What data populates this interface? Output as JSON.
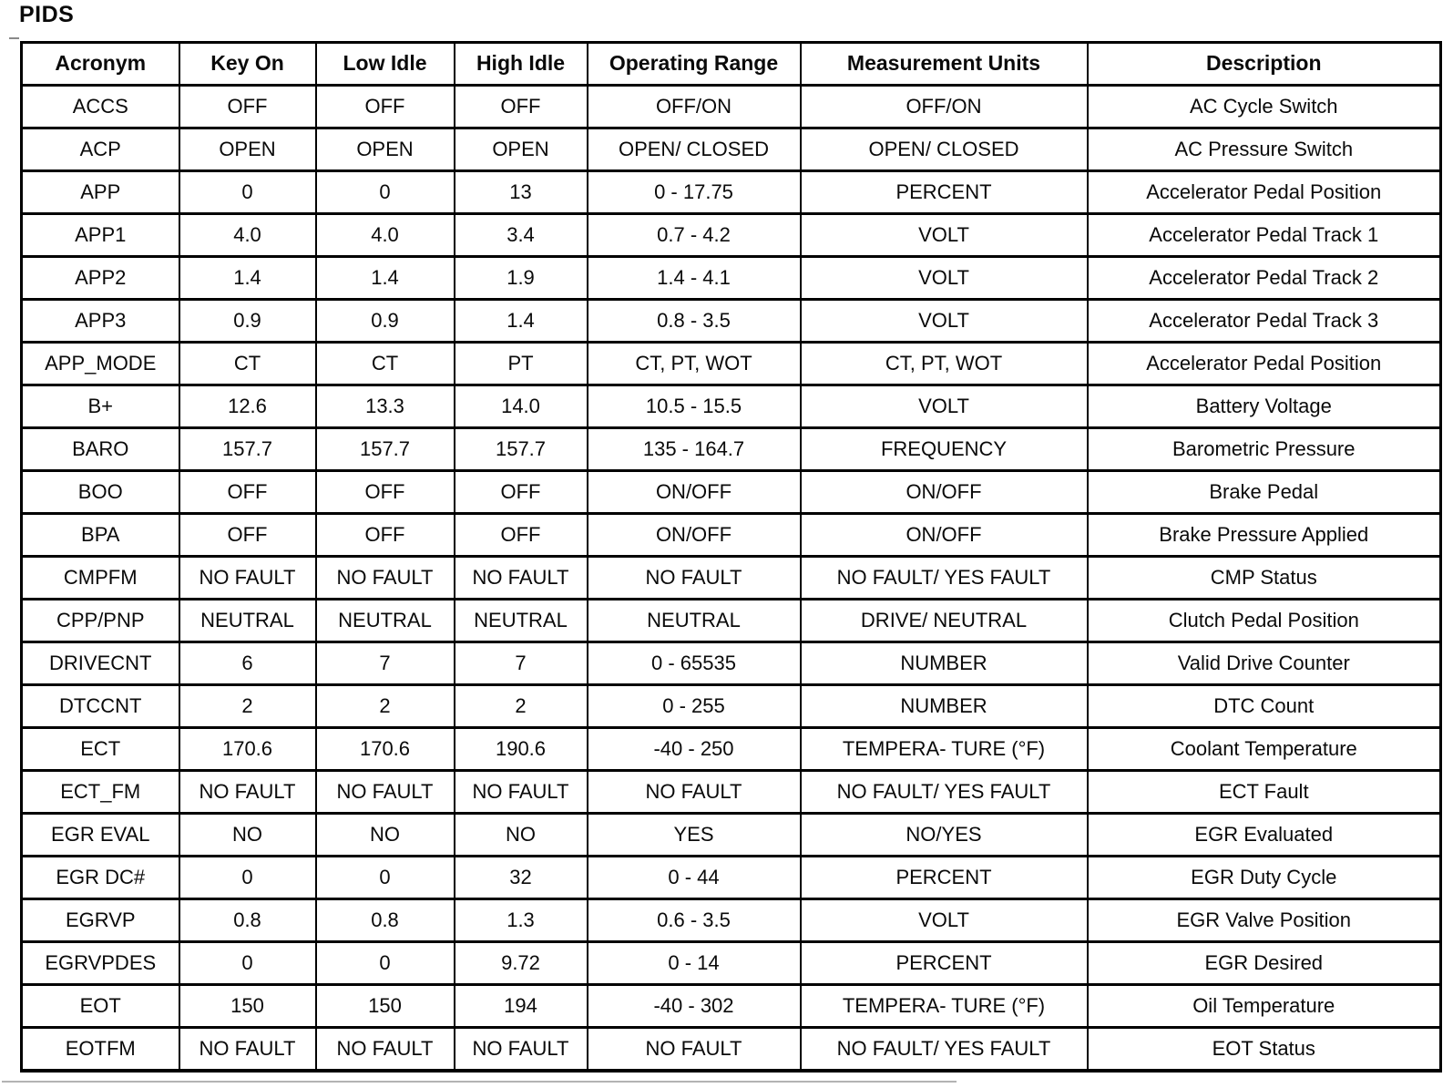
{
  "page": {
    "title": "PIDS"
  },
  "table": {
    "columns": [
      "Acronym",
      "Key On",
      "Low Idle",
      "High Idle",
      "Operating Range",
      "Measurement Units",
      "Description"
    ],
    "rows": [
      [
        "ACCS",
        "OFF",
        "OFF",
        "OFF",
        "OFF/ON",
        "OFF/ON",
        "AC Cycle Switch"
      ],
      [
        "ACP",
        "OPEN",
        "OPEN",
        "OPEN",
        "OPEN/ CLOSED",
        "OPEN/ CLOSED",
        "AC Pressure Switch"
      ],
      [
        "APP",
        "0",
        "0",
        "13",
        "0 - 17.75",
        "PERCENT",
        "Accelerator Pedal Position"
      ],
      [
        "APP1",
        "4.0",
        "4.0",
        "3.4",
        "0.7 - 4.2",
        "VOLT",
        "Accelerator Pedal Track 1"
      ],
      [
        "APP2",
        "1.4",
        "1.4",
        "1.9",
        "1.4 - 4.1",
        "VOLT",
        "Accelerator Pedal Track 2"
      ],
      [
        "APP3",
        "0.9",
        "0.9",
        "1.4",
        "0.8 - 3.5",
        "VOLT",
        "Accelerator Pedal Track 3"
      ],
      [
        "APP_MODE",
        "CT",
        "CT",
        "PT",
        "CT, PT, WOT",
        "CT, PT, WOT",
        "Accelerator Pedal Position"
      ],
      [
        "B+",
        "12.6",
        "13.3",
        "14.0",
        "10.5 - 15.5",
        "VOLT",
        "Battery Voltage"
      ],
      [
        "BARO",
        "157.7",
        "157.7",
        "157.7",
        "135 - 164.7",
        "FREQUENCY",
        "Barometric Pressure"
      ],
      [
        "BOO",
        "OFF",
        "OFF",
        "OFF",
        "ON/OFF",
        "ON/OFF",
        "Brake Pedal"
      ],
      [
        "BPA",
        "OFF",
        "OFF",
        "OFF",
        "ON/OFF",
        "ON/OFF",
        "Brake Pressure Applied"
      ],
      [
        "CMPFM",
        "NO FAULT",
        "NO FAULT",
        "NO FAULT",
        "NO FAULT",
        "NO FAULT/ YES FAULT",
        "CMP Status"
      ],
      [
        "CPP/PNP",
        "NEUTRAL",
        "NEUTRAL",
        "NEUTRAL",
        "NEUTRAL",
        "DRIVE/ NEUTRAL",
        "Clutch Pedal Position"
      ],
      [
        "DRIVECNT",
        "6",
        "7",
        "7",
        "0 - 65535",
        "NUMBER",
        "Valid Drive Counter"
      ],
      [
        "DTCCNT",
        "2",
        "2",
        "2",
        "0 - 255",
        "NUMBER",
        "DTC Count"
      ],
      [
        "ECT",
        "170.6",
        "170.6",
        "190.6",
        "-40 - 250",
        "TEMPERA- TURE (°F)",
        "Coolant Temperature"
      ],
      [
        "ECT_FM",
        "NO FAULT",
        "NO FAULT",
        "NO FAULT",
        "NO FAULT",
        "NO FAULT/ YES FAULT",
        "ECT Fault"
      ],
      [
        "EGR EVAL",
        "NO",
        "NO",
        "NO",
        "YES",
        "NO/YES",
        "EGR Evaluated"
      ],
      [
        "EGR DC#",
        "0",
        "0",
        "32",
        "0 - 44",
        "PERCENT",
        "EGR Duty Cycle"
      ],
      [
        "EGRVP",
        "0.8",
        "0.8",
        "1.3",
        "0.6 - 3.5",
        "VOLT",
        "EGR Valve Position"
      ],
      [
        "EGRVPDES",
        "0",
        "0",
        "9.72",
        "0 - 14",
        "PERCENT",
        "EGR Desired"
      ],
      [
        "EOT",
        "150",
        "150",
        "194",
        "-40 - 302",
        "TEMPERA- TURE (°F)",
        "Oil Temperature"
      ],
      [
        "EOTFM",
        "NO FAULT",
        "NO FAULT",
        "NO FAULT",
        "NO FAULT",
        "NO FAULT/ YES FAULT",
        "EOT Status"
      ]
    ]
  }
}
